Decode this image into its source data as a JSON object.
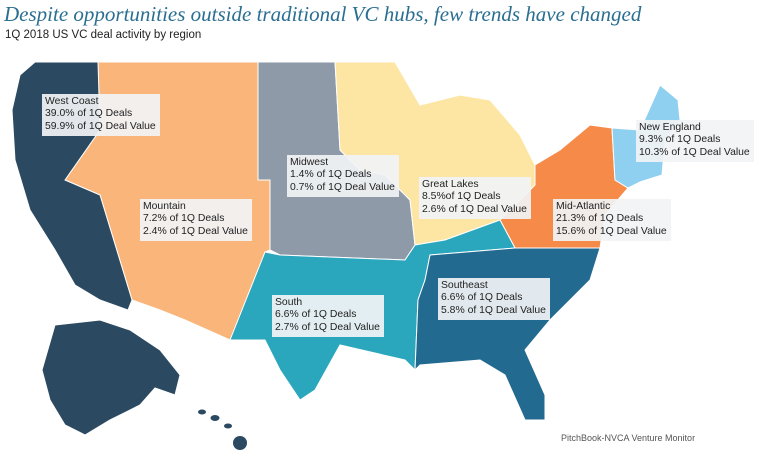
{
  "title": "Despite opportunities outside traditional VC hubs, few trends have changed",
  "subtitle": "1Q 2018 US VC deal activity by region",
  "source": "PitchBook-NVCA Venture Monitor",
  "regions": {
    "west_coast": {
      "name": "West Coast",
      "deals": "39.0% of 1Q Deals",
      "value": "59.9% of 1Q Deal Value",
      "color": "#2b4a61"
    },
    "mountain": {
      "name": "Mountain",
      "deals": "7.2% of 1Q Deals",
      "value": "2.4% of 1Q Deal Value",
      "color": "#f9b57a"
    },
    "midwest": {
      "name": "Midwest",
      "deals": "1.4% of 1Q Deals",
      "value": "0.7% of 1Q Deal Value",
      "color": "#8e9aa8"
    },
    "great_lakes": {
      "name": "Great Lakes",
      "deals": "8.5%of 1Q Deals",
      "value": "2.6% of 1Q Deal Value",
      "color": "#fde6a4"
    },
    "mid_atlantic": {
      "name": "Mid-Atlantic",
      "deals": "21.3% of 1Q Deals",
      "value": "15.6% of 1Q Deal Value",
      "color": "#f68b49"
    },
    "new_england": {
      "name": "New England",
      "deals": "9.3% of 1Q Deals",
      "value": "10.3% of 1Q Deal Value",
      "color": "#8fd0f0"
    },
    "south": {
      "name": "South",
      "deals": "6.6% of 1Q Deals",
      "value": "2.7% of 1Q Deal Value",
      "color": "#2aa6bd"
    },
    "southeast": {
      "name": "Southeast",
      "deals": "6.6% of 1Q Deals",
      "value": "5.8% of 1Q Deal Value",
      "color": "#236a91"
    }
  }
}
